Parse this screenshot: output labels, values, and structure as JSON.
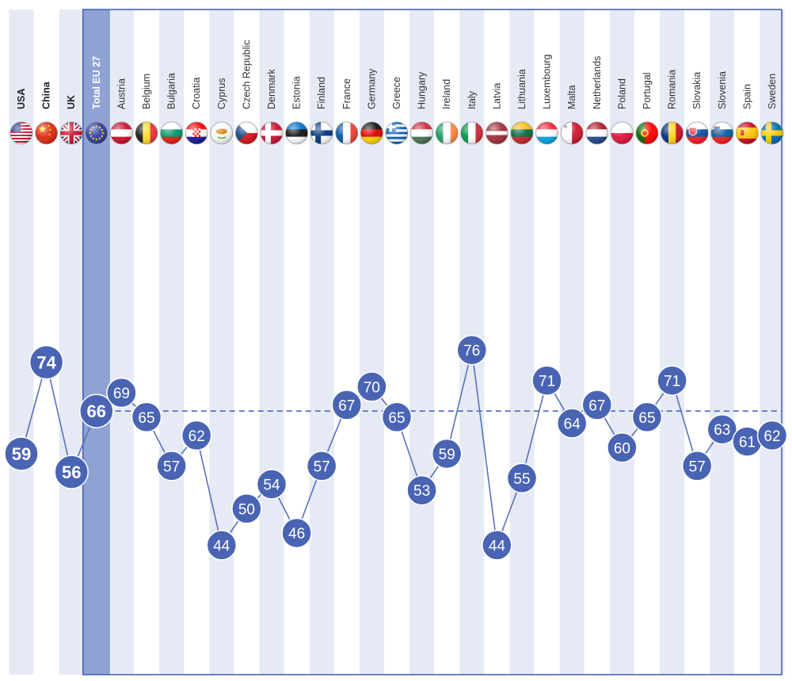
{
  "chart_data": {
    "type": "line",
    "categories": [
      "USA",
      "China",
      "UK",
      "Total EU 27",
      "Austria",
      "Belgium",
      "Bulgaria",
      "Croatia",
      "Cyprus",
      "Czech Republic",
      "Denmark",
      "Estonia",
      "Finland",
      "France",
      "Germany",
      "Greece",
      "Hungary",
      "Ireland",
      "Italy",
      "Latvia",
      "Lithuania",
      "Luxembourg",
      "Malta",
      "Netherlands",
      "Poland",
      "Portugal",
      "Romania",
      "Slovakia",
      "Slovenia",
      "Spain",
      "Sweden"
    ],
    "values": [
      59,
      74,
      56,
      66,
      69,
      65,
      57,
      62,
      44,
      50,
      54,
      46,
      57,
      67,
      70,
      65,
      53,
      59,
      76,
      44,
      55,
      71,
      64,
      67,
      60,
      65,
      71,
      57,
      63,
      61,
      62
    ],
    "highlight_category": "Total EU 27",
    "reference_line_value": 66,
    "bold_categories": [
      "USA",
      "China",
      "UK",
      "Total EU 27"
    ],
    "flags": [
      "us-flag",
      "china-flag",
      "uk-flag",
      "eu-flag",
      "austria-flag",
      "belgium-flag",
      "bulgaria-flag",
      "croatia-flag",
      "cyprus-flag",
      "czech-flag",
      "denmark-flag",
      "estonia-flag",
      "finland-flag",
      "france-flag",
      "germany-flag",
      "greece-flag",
      "hungary-flag",
      "ireland-flag",
      "italy-flag",
      "latvia-flag",
      "lithuania-flag",
      "luxembourg-flag",
      "malta-flag",
      "netherlands-flag",
      "poland-flag",
      "portugal-flag",
      "romania-flag",
      "slovakia-flag",
      "slovenia-flag",
      "spain-flag",
      "sweden-flag"
    ],
    "ylim": [
      30,
      90
    ],
    "grid": false,
    "colors": {
      "marker": "#4a64b4",
      "line": "#5a72b8",
      "stripe": "#e6eaf5",
      "highlight": "#8fa2d4",
      "frame": "#4a64b4"
    }
  }
}
